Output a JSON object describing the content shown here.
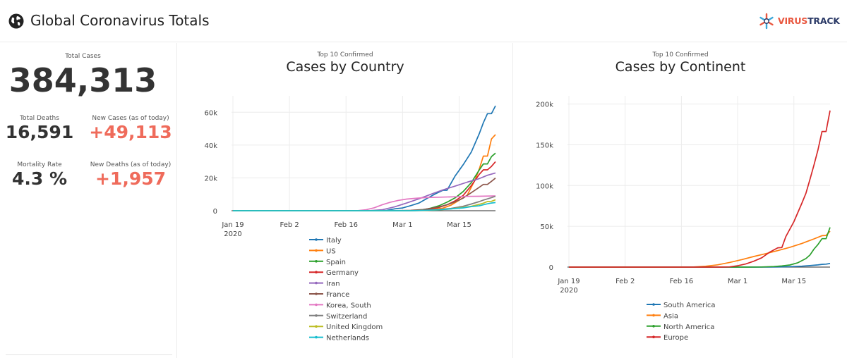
{
  "header": {
    "title": "Global Coronavirus Totals",
    "logo_part1": "VIRUS",
    "logo_part2": "TRACK"
  },
  "stats": {
    "total_cases_label": "Total Cases",
    "total_cases": "384,313",
    "total_deaths_label": "Total Deaths",
    "total_deaths": "16,591",
    "new_cases_label": "New Cases (as of today)",
    "new_cases": "+49,113",
    "mortality_label": "Mortality Rate",
    "mortality": "4.3 %",
    "new_deaths_label": "New Deaths (as of today)",
    "new_deaths": "+1,957"
  },
  "colors": {
    "accent_red": "#ef6b5b",
    "dark_text": "#333333"
  },
  "chart_data": [
    {
      "type": "line",
      "subtitle": "Top 10 Confirmed",
      "title": "Cases by Country",
      "x_start": "2020-01-19",
      "x_end": "2020-03-24",
      "xticks": [
        {
          "day": 0,
          "label": "Jan 19",
          "label2": "2020"
        },
        {
          "day": 14,
          "label": "Feb 2",
          "label2": ""
        },
        {
          "day": 28,
          "label": "Feb 16",
          "label2": ""
        },
        {
          "day": 42,
          "label": "Mar 1",
          "label2": ""
        },
        {
          "day": 56,
          "label": "Mar 15",
          "label2": ""
        }
      ],
      "xlim": [
        0,
        65
      ],
      "ylim": [
        0,
        70000
      ],
      "yticks": [
        0,
        20000,
        40000,
        60000
      ],
      "ytick_labels": [
        "0",
        "20k",
        "40k",
        "60k"
      ],
      "grid": true,
      "legend_position": "bottom",
      "series": [
        {
          "name": "Italy",
          "color": "#1f77b4",
          "points": [
            [
              0,
              0
            ],
            [
              30,
              0
            ],
            [
              35,
              3
            ],
            [
              38,
              155
            ],
            [
              40,
              1128
            ],
            [
              42,
              1694
            ],
            [
              44,
              3089
            ],
            [
              46,
              4636
            ],
            [
              48,
              7375
            ],
            [
              50,
              10149
            ],
            [
              52,
              12462
            ],
            [
              53,
              12462
            ],
            [
              55,
              21157
            ],
            [
              57,
              27980
            ],
            [
              59,
              35713
            ],
            [
              61,
              47021
            ],
            [
              62,
              53578
            ],
            [
              63,
              59138
            ],
            [
              64,
              59138
            ],
            [
              65,
              63927
            ]
          ]
        },
        {
          "name": "US",
          "color": "#ff7f0e",
          "points": [
            [
              0,
              0
            ],
            [
              40,
              15
            ],
            [
              44,
              100
            ],
            [
              47,
              300
            ],
            [
              50,
              1000
            ],
            [
              52,
              1600
            ],
            [
              54,
              3400
            ],
            [
              56,
              6400
            ],
            [
              58,
              9400
            ],
            [
              59,
              14300
            ],
            [
              60,
              19100
            ],
            [
              61,
              25500
            ],
            [
              62,
              33300
            ],
            [
              63,
              33300
            ],
            [
              64,
              43700
            ],
            [
              65,
              46400
            ]
          ]
        },
        {
          "name": "Spain",
          "color": "#2ca02c",
          "points": [
            [
              0,
              0
            ],
            [
              42,
              0
            ],
            [
              44,
              100
            ],
            [
              47,
              500
            ],
            [
              49,
              1600
            ],
            [
              51,
              3000
            ],
            [
              53,
              5200
            ],
            [
              55,
              7800
            ],
            [
              57,
              11700
            ],
            [
              59,
              17100
            ],
            [
              61,
              24900
            ],
            [
              62,
              28500
            ],
            [
              63,
              28500
            ],
            [
              64,
              33000
            ],
            [
              65,
              35100
            ]
          ]
        },
        {
          "name": "Germany",
          "color": "#d62728",
          "points": [
            [
              0,
              0
            ],
            [
              42,
              0
            ],
            [
              44,
              100
            ],
            [
              47,
              500
            ],
            [
              49,
              1100
            ],
            [
              51,
              2000
            ],
            [
              53,
              3600
            ],
            [
              55,
              6000
            ],
            [
              57,
              9300
            ],
            [
              59,
              15300
            ],
            [
              61,
              22200
            ],
            [
              62,
              24900
            ],
            [
              63,
              24900
            ],
            [
              64,
              27000
            ],
            [
              65,
              29900
            ]
          ]
        },
        {
          "name": "Iran",
          "color": "#9467bd",
          "points": [
            [
              0,
              0
            ],
            [
              31,
              0
            ],
            [
              34,
              100
            ],
            [
              37,
              600
            ],
            [
              40,
              2300
            ],
            [
              43,
              4700
            ],
            [
              46,
              7200
            ],
            [
              49,
              10000
            ],
            [
              52,
              12700
            ],
            [
              55,
              15000
            ],
            [
              58,
              17400
            ],
            [
              61,
              19600
            ],
            [
              63,
              21600
            ],
            [
              65,
              23000
            ]
          ]
        },
        {
          "name": "France",
          "color": "#8c564b",
          "points": [
            [
              0,
              0
            ],
            [
              40,
              0
            ],
            [
              44,
              200
            ],
            [
              47,
              700
            ],
            [
              49,
              1400
            ],
            [
              51,
              2300
            ],
            [
              53,
              3600
            ],
            [
              55,
              5400
            ],
            [
              57,
              7700
            ],
            [
              59,
              11000
            ],
            [
              61,
              14300
            ],
            [
              62,
              16000
            ],
            [
              63,
              16000
            ],
            [
              64,
              17900
            ],
            [
              65,
              19900
            ]
          ]
        },
        {
          "name": "Korea, South",
          "color": "#e377c2",
          "points": [
            [
              0,
              0
            ],
            [
              28,
              0
            ],
            [
              31,
              100
            ],
            [
              33,
              600
            ],
            [
              35,
              1800
            ],
            [
              37,
              3700
            ],
            [
              39,
              5200
            ],
            [
              41,
              6300
            ],
            [
              43,
              7100
            ],
            [
              45,
              7500
            ],
            [
              47,
              7900
            ],
            [
              49,
              8100
            ],
            [
              52,
              8300
            ],
            [
              55,
              8500
            ],
            [
              58,
              8700
            ],
            [
              61,
              8800
            ],
            [
              65,
              9000
            ]
          ]
        },
        {
          "name": "Switzerland",
          "color": "#7f7f7f",
          "points": [
            [
              0,
              0
            ],
            [
              44,
              0
            ],
            [
              48,
              300
            ],
            [
              51,
              700
            ],
            [
              54,
              1400
            ],
            [
              57,
              2700
            ],
            [
              59,
              4100
            ],
            [
              61,
              5600
            ],
            [
              62,
              6500
            ],
            [
              63,
              7200
            ],
            [
              64,
              8000
            ],
            [
              65,
              8800
            ]
          ]
        },
        {
          "name": "United Kingdom",
          "color": "#bcbd22",
          "points": [
            [
              0,
              0
            ],
            [
              44,
              0
            ],
            [
              48,
              200
            ],
            [
              51,
              500
            ],
            [
              54,
              1100
            ],
            [
              57,
              2000
            ],
            [
              59,
              2700
            ],
            [
              61,
              3900
            ],
            [
              62,
              4600
            ],
            [
              63,
              5600
            ],
            [
              64,
              5700
            ],
            [
              65,
              6700
            ]
          ]
        },
        {
          "name": "Netherlands",
          "color": "#17becf",
          "points": [
            [
              0,
              0
            ],
            [
              44,
              0
            ],
            [
              48,
              300
            ],
            [
              51,
              600
            ],
            [
              54,
              1100
            ],
            [
              57,
              1700
            ],
            [
              59,
              2500
            ],
            [
              61,
              3000
            ],
            [
              62,
              3600
            ],
            [
              63,
              4200
            ],
            [
              64,
              4700
            ],
            [
              65,
              5000
            ]
          ]
        }
      ]
    },
    {
      "type": "line",
      "subtitle": "Top 10 Confirmed",
      "title": "Cases by Continent",
      "x_start": "2020-01-19",
      "x_end": "2020-03-24",
      "xticks": [
        {
          "day": 0,
          "label": "Jan 19",
          "label2": "2020"
        },
        {
          "day": 14,
          "label": "Feb 2",
          "label2": ""
        },
        {
          "day": 28,
          "label": "Feb 16",
          "label2": ""
        },
        {
          "day": 42,
          "label": "Mar 1",
          "label2": ""
        },
        {
          "day": 56,
          "label": "Mar 15",
          "label2": ""
        }
      ],
      "xlim": [
        0,
        65
      ],
      "ylim": [
        0,
        210000
      ],
      "yticks": [
        0,
        50000,
        100000,
        150000,
        200000
      ],
      "ytick_labels": [
        "0",
        "50k",
        "100k",
        "150k",
        "200k"
      ],
      "grid": true,
      "legend_position": "bottom",
      "series": [
        {
          "name": "South America",
          "color": "#1f77b4",
          "points": [
            [
              0,
              0
            ],
            [
              46,
              0
            ],
            [
              50,
              100
            ],
            [
              53,
              300
            ],
            [
              56,
              700
            ],
            [
              58,
              1100
            ],
            [
              60,
              1800
            ],
            [
              62,
              2700
            ],
            [
              63,
              3400
            ],
            [
              64,
              3600
            ],
            [
              65,
              4400
            ]
          ]
        },
        {
          "name": "Asia",
          "color": "#ff7f0e",
          "points": [
            [
              0,
              0
            ],
            [
              28,
              0
            ],
            [
              31,
              200
            ],
            [
              34,
              1000
            ],
            [
              37,
              2800
            ],
            [
              40,
              5700
            ],
            [
              43,
              9200
            ],
            [
              46,
              13000
            ],
            [
              49,
              16500
            ],
            [
              52,
              20200
            ],
            [
              55,
              24300
            ],
            [
              58,
              29000
            ],
            [
              61,
              34600
            ],
            [
              63,
              38500
            ],
            [
              64,
              38800
            ],
            [
              65,
              44000
            ]
          ]
        },
        {
          "name": "North America",
          "color": "#2ca02c",
          "points": [
            [
              0,
              0
            ],
            [
              44,
              0
            ],
            [
              48,
              200
            ],
            [
              51,
              700
            ],
            [
              53,
              1400
            ],
            [
              55,
              2600
            ],
            [
              57,
              5400
            ],
            [
              59,
              10500
            ],
            [
              60,
              14800
            ],
            [
              61,
              22000
            ],
            [
              62,
              27700
            ],
            [
              63,
              34800
            ],
            [
              64,
              34800
            ],
            [
              65,
              48700
            ]
          ]
        },
        {
          "name": "Europe",
          "color": "#d62728",
          "points": [
            [
              0,
              0
            ],
            [
              38,
              0
            ],
            [
              40,
              300
            ],
            [
              42,
              1600
            ],
            [
              44,
              3800
            ],
            [
              46,
              7200
            ],
            [
              48,
              11400
            ],
            [
              50,
              18400
            ],
            [
              52,
              23700
            ],
            [
              53,
              23900
            ],
            [
              54,
              37500
            ],
            [
              56,
              55700
            ],
            [
              58,
              78600
            ],
            [
              59,
              90500
            ],
            [
              60,
              107500
            ],
            [
              61,
              125100
            ],
            [
              62,
              143900
            ],
            [
              63,
              166300
            ],
            [
              64,
              166300
            ],
            [
              65,
              192000
            ]
          ]
        }
      ]
    }
  ]
}
